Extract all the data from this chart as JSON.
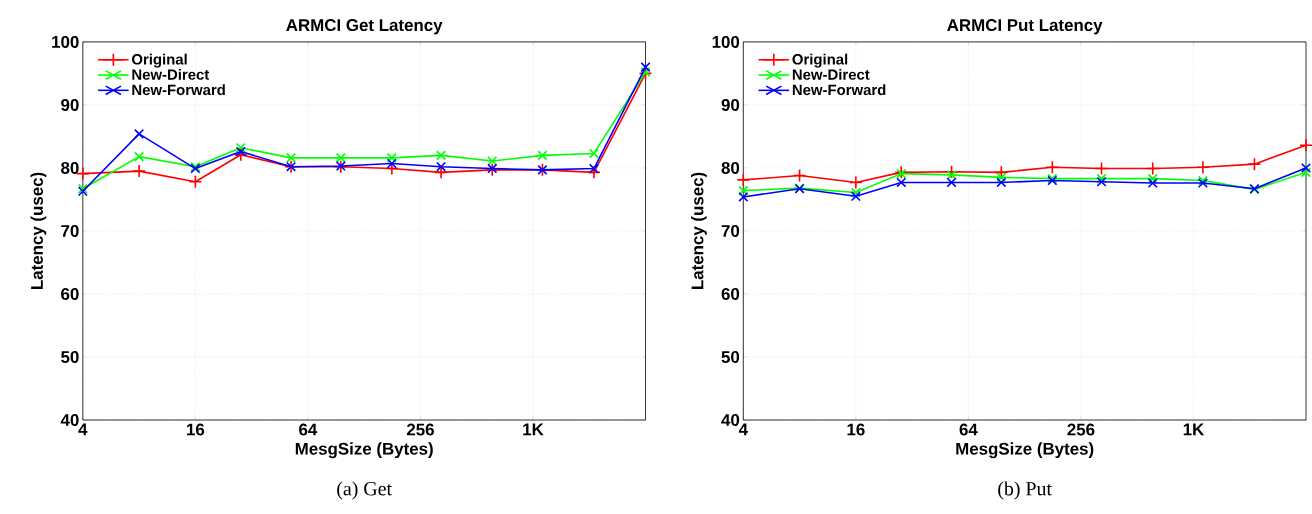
{
  "chart_data": [
    {
      "type": "line",
      "title": "ARMCI Get Latency",
      "xlabel": "MesgSize (Bytes)",
      "ylabel": "Latency (usec)",
      "annotations": [
        "(a) Get"
      ],
      "x": [
        4,
        8,
        16,
        28,
        52,
        96,
        180,
        330,
        620,
        1150,
        2170,
        4096
      ],
      "series": [
        {
          "name": "Original",
          "color": "#ff0000",
          "marker": "plus",
          "values": [
            79.1,
            79.5,
            77.8,
            82.1,
            80.2,
            80.2,
            79.9,
            79.3,
            79.7,
            79.7,
            79.3,
            95.0
          ]
        },
        {
          "name": "New-Direct",
          "color": "#00ff00",
          "marker": "cross",
          "values": [
            76.7,
            81.8,
            80.2,
            83.2,
            81.6,
            81.6,
            81.6,
            82.0,
            81.1,
            82.0,
            82.3,
            95.2
          ]
        },
        {
          "name": "New-Forward",
          "color": "#0000ff",
          "marker": "cross",
          "values": [
            76.3,
            85.4,
            79.9,
            82.6,
            80.2,
            80.3,
            80.7,
            80.2,
            79.9,
            79.7,
            79.9,
            96.0
          ]
        }
      ],
      "log": "x",
      "xlim": [
        4,
        4096
      ],
      "ylim": [
        40,
        100
      ],
      "xticks": [
        4,
        16,
        64,
        256,
        {
          "value": 1024,
          "label": "1K"
        }
      ],
      "yticks": [
        40,
        50,
        60,
        70,
        80,
        90,
        100
      ],
      "grid": true,
      "legend": "top left",
      "line_style": "solid"
    },
    {
      "type": "line",
      "title": "ARMCI Put Latency",
      "xlabel": "MesgSize (Bytes)",
      "ylabel": "Latency (usec)",
      "annotations": [
        "(b) Put"
      ],
      "x": [
        4,
        8,
        16,
        28,
        52,
        96,
        180,
        330,
        620,
        1150,
        2170,
        4096
      ],
      "series": [
        {
          "name": "Original",
          "color": "#ff0000",
          "marker": "plus",
          "values": [
            78.1,
            78.8,
            77.7,
            79.3,
            79.4,
            79.3,
            80.1,
            79.9,
            79.9,
            80.1,
            80.6,
            83.6
          ]
        },
        {
          "name": "New-Direct",
          "color": "#00ff00",
          "marker": "cross",
          "values": [
            76.4,
            76.8,
            76.1,
            79.1,
            78.9,
            78.5,
            78.3,
            78.3,
            78.3,
            78.0,
            76.6,
            79.3
          ]
        },
        {
          "name": "New-Forward",
          "color": "#0000ff",
          "marker": "cross",
          "values": [
            75.4,
            76.7,
            75.5,
            77.7,
            77.7,
            77.7,
            78.0,
            77.8,
            77.6,
            77.6,
            76.7,
            80.0
          ]
        }
      ],
      "log": "x",
      "xlim": [
        4,
        4096
      ],
      "ylim": [
        40,
        100
      ],
      "xticks": [
        4,
        16,
        64,
        256,
        {
          "value": 1024,
          "label": "1K"
        }
      ],
      "yticks": [
        40,
        50,
        60,
        70,
        80,
        90,
        100
      ],
      "grid": true,
      "legend": "top left",
      "line_style": "solid"
    }
  ]
}
